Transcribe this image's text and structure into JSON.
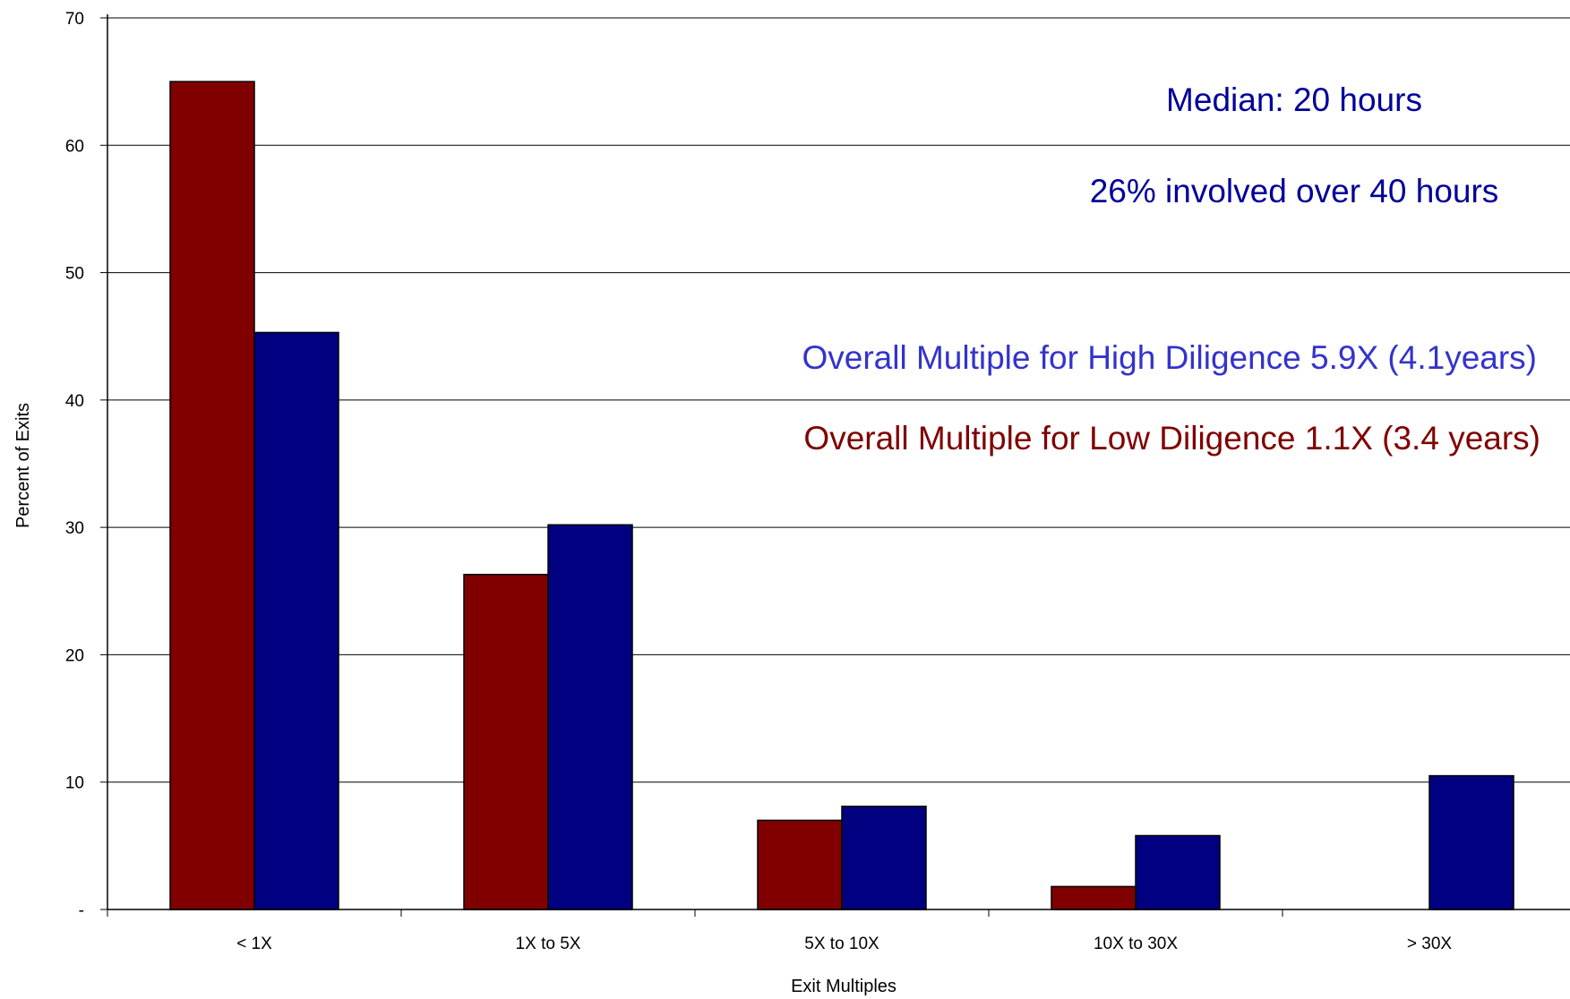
{
  "chart_data": {
    "type": "bar",
    "categories": [
      "< 1X",
      "1X to 5X",
      "5X to 10X",
      "10X to 30X",
      "> 30X"
    ],
    "series": [
      {
        "values": [
          65.0,
          26.3,
          7.0,
          1.8,
          0.0
        ],
        "color": "#800000"
      },
      {
        "values": [
          45.3,
          30.2,
          8.1,
          5.8,
          10.5
        ],
        "color": "#000080"
      }
    ],
    "xlabel": "Exit Multiples",
    "ylabel": "Percent of Exits",
    "ylim": [
      0,
      70
    ],
    "yticks": [
      {
        "value": 0,
        "label": "-"
      },
      {
        "value": 10,
        "label": "10"
      },
      {
        "value": 20,
        "label": "20"
      },
      {
        "value": 30,
        "label": "30"
      },
      {
        "value": 40,
        "label": "40"
      },
      {
        "value": 50,
        "label": "50"
      },
      {
        "value": 60,
        "label": "60"
      },
      {
        "value": 70,
        "label": "70"
      }
    ],
    "grid": true,
    "annotations": [
      {
        "text": "Median: 20 hours",
        "color": "#000099"
      },
      {
        "text": "26% involved over 40 hours",
        "color": "#000099"
      },
      {
        "text": "Overall Multiple for High Diligence 5.9X (4.1years)",
        "color": "#3333cc"
      },
      {
        "text": "Overall Multiple for Low Diligence 1.1X (3.4 years)",
        "color": "#800000"
      }
    ]
  }
}
